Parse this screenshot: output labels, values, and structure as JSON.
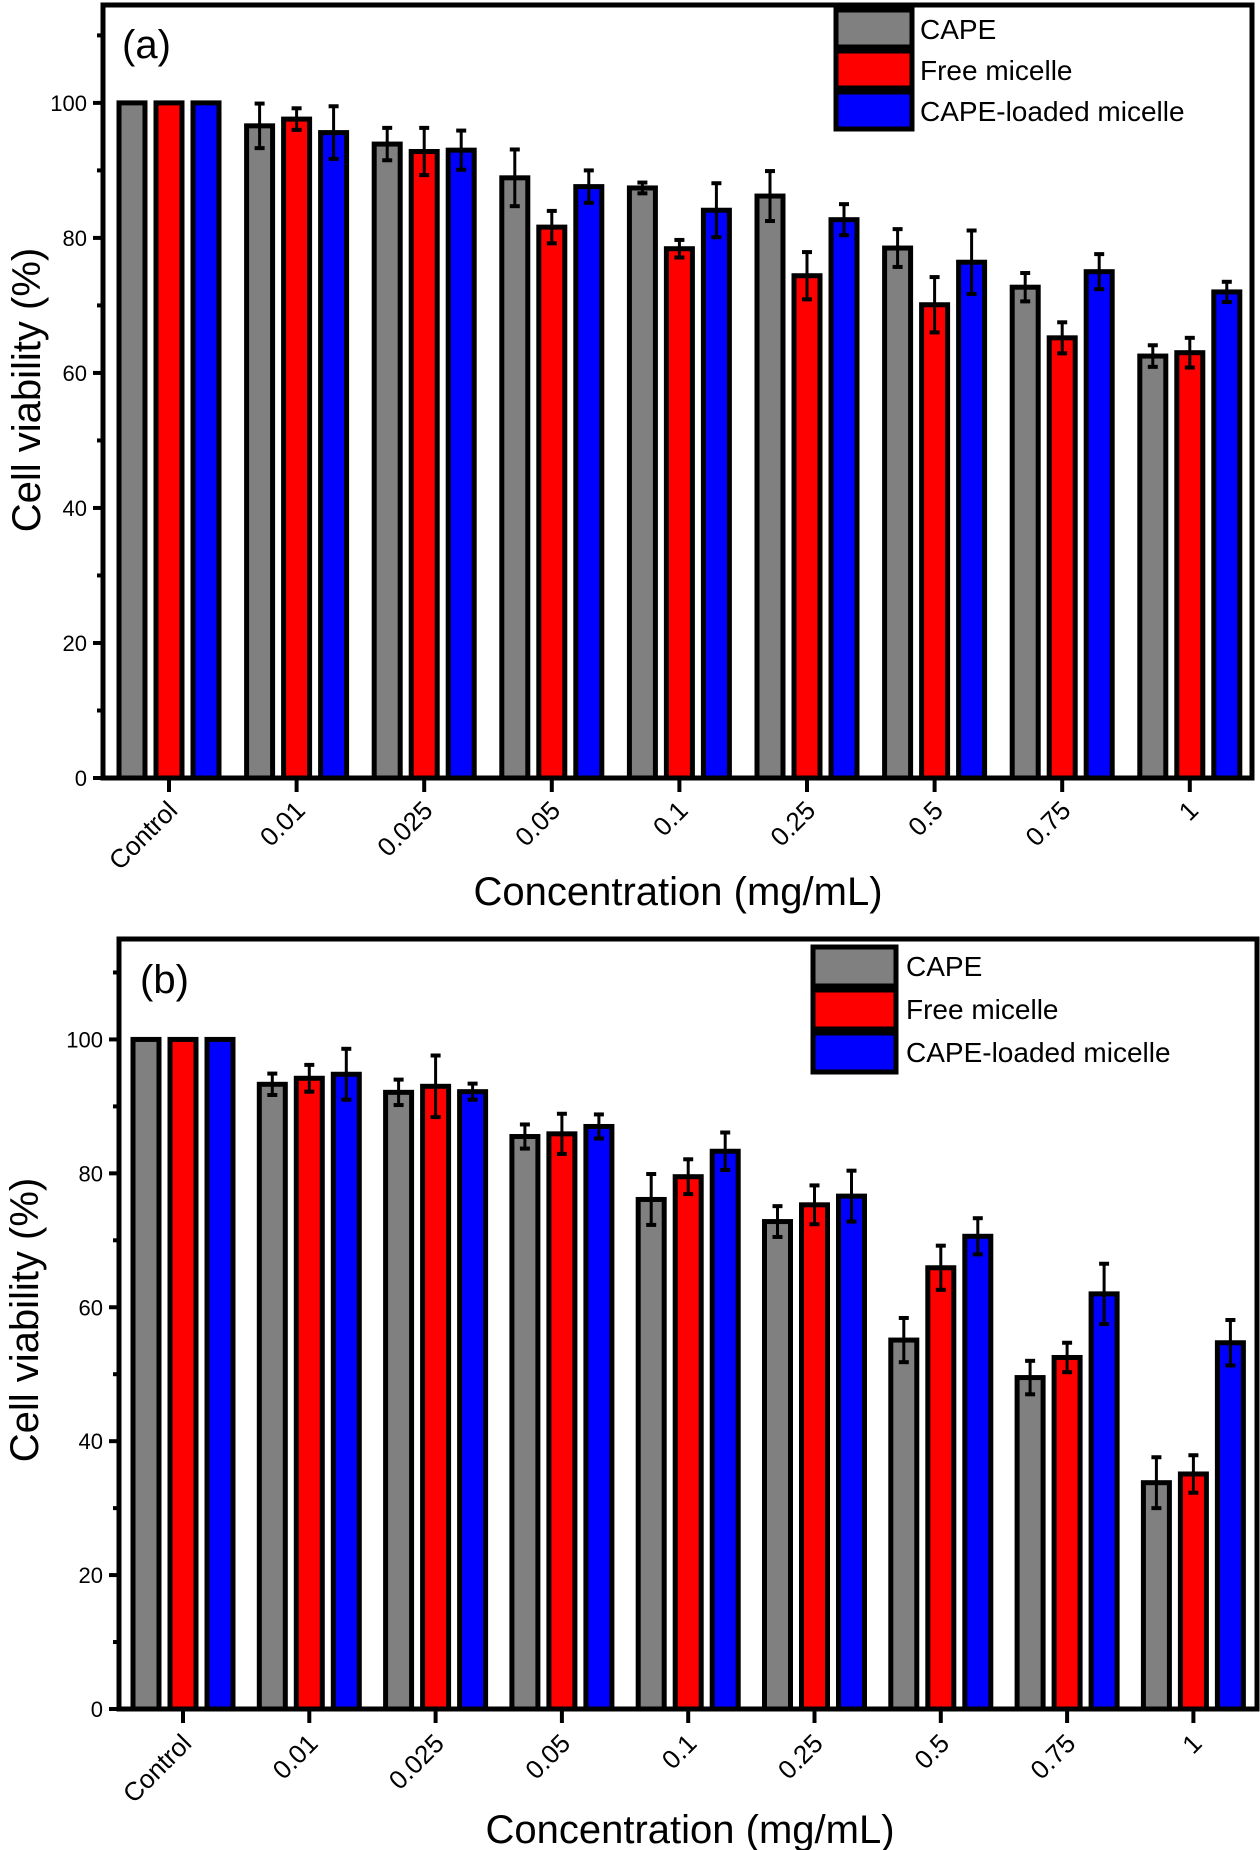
{
  "chart_data": [
    {
      "type": "bar",
      "panel_label": "(a)",
      "xlabel": "Concentration (mg/mL)",
      "ylabel": "Cell viability (%)",
      "ylim": [
        0,
        114.5
      ],
      "yticks": [
        0,
        20,
        40,
        60,
        80,
        100
      ],
      "yminor_ticks": [
        10,
        30,
        50,
        70,
        90,
        110
      ],
      "grid": false,
      "legend_position": "top-right",
      "categories": [
        "Control",
        "0.01",
        "0.025",
        "0.05",
        "0.1",
        "0.25",
        "0.5",
        "0.75",
        "1"
      ],
      "series": [
        {
          "name": "CAPE",
          "color": "#808080",
          "values": [
            100,
            96.6,
            93.9,
            88.9,
            87.4,
            86.2,
            78.5,
            72.7,
            62.5
          ],
          "errors": [
            0,
            3.3,
            2.4,
            4.2,
            0.8,
            3.7,
            2.8,
            2.1,
            1.6
          ]
        },
        {
          "name": "Free micelle",
          "color": "#ff0000",
          "values": [
            100,
            97.6,
            92.8,
            81.6,
            78.4,
            74.4,
            70.1,
            65.2,
            63.0
          ],
          "errors": [
            0,
            1.6,
            3.5,
            2.4,
            1.3,
            3.5,
            4.1,
            2.3,
            2.2
          ]
        },
        {
          "name": "CAPE-loaded micelle",
          "color": "#0000ff",
          "values": [
            100,
            95.6,
            93.0,
            87.6,
            84.1,
            82.7,
            76.4,
            75.0,
            72.0
          ],
          "errors": [
            0,
            3.9,
            2.9,
            2.4,
            4.0,
            2.3,
            4.7,
            2.6,
            1.5
          ]
        }
      ]
    },
    {
      "type": "bar",
      "panel_label": "(b)",
      "xlabel": "Concentration (mg/mL)",
      "ylabel": "Cell viability (%)",
      "ylim": [
        0,
        115
      ],
      "yticks": [
        0,
        20,
        40,
        60,
        80,
        100
      ],
      "yminor_ticks": [
        10,
        30,
        50,
        70,
        90,
        110
      ],
      "grid": false,
      "legend_position": "top-right",
      "categories": [
        "Control",
        "0.01",
        "0.025",
        "0.05",
        "0.1",
        "0.25",
        "0.5",
        "0.75",
        "1"
      ],
      "series": [
        {
          "name": "CAPE",
          "color": "#808080",
          "values": [
            100,
            93.3,
            92.1,
            85.5,
            76.1,
            72.8,
            55.1,
            49.5,
            33.8
          ],
          "errors": [
            0,
            1.6,
            1.9,
            1.8,
            3.8,
            2.3,
            3.3,
            2.5,
            3.8
          ]
        },
        {
          "name": "Free micelle",
          "color": "#ff0000",
          "values": [
            100,
            94.2,
            93.0,
            85.9,
            79.5,
            75.3,
            65.9,
            52.5,
            35.1
          ],
          "errors": [
            0,
            2.0,
            4.6,
            3.0,
            2.6,
            2.9,
            3.3,
            2.2,
            2.8
          ]
        },
        {
          "name": "CAPE-loaded micelle",
          "color": "#0000ff",
          "values": [
            100,
            94.8,
            92.2,
            87.0,
            83.3,
            76.6,
            70.6,
            62.0,
            54.7
          ],
          "errors": [
            0,
            3.8,
            1.2,
            1.8,
            2.8,
            3.8,
            2.7,
            4.5,
            3.4
          ]
        }
      ]
    }
  ]
}
